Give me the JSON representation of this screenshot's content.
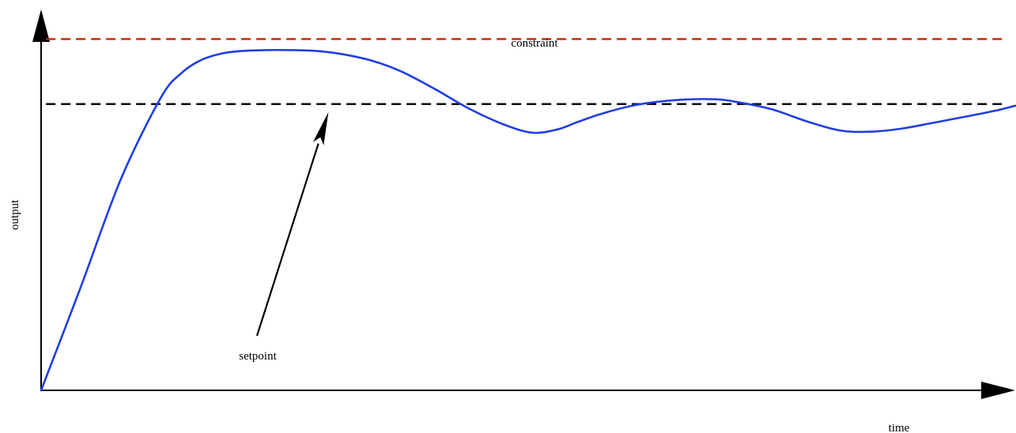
{
  "chart_data": {
    "type": "line",
    "title": "",
    "xlabel": "time",
    "ylabel": "output",
    "grid": false,
    "xlim": [
      0,
      100
    ],
    "ylim": [
      0,
      120
    ],
    "series": [
      {
        "name": "",
        "color": "#1f3fe0",
        "x": [
          0,
          4.1,
          8.2,
          12.3,
          14.4,
          16.4,
          18.5,
          20.5,
          23,
          25.6,
          28.3,
          31,
          34,
          37,
          40.5,
          44,
          47.7,
          50.5,
          53,
          55,
          57.5,
          61,
          65,
          69,
          71.5,
          75,
          78.6,
          82,
          85,
          88.2,
          91.5,
          95,
          98,
          100
        ],
        "y": [
          0,
          32,
          65,
          90,
          97.5,
          101.5,
          103.5,
          104.3,
          104.6,
          104.6,
          104.3,
          103.3,
          101.3,
          98,
          92.5,
          86.5,
          81.5,
          79.2,
          80.2,
          82.4,
          85,
          87.7,
          89.2,
          89.5,
          88.6,
          86.4,
          82.7,
          79.9,
          79.5,
          80.4,
          82.2,
          84.2,
          86,
          87.5
        ]
      }
    ],
    "reference_lines": [
      {
        "name": "constraint",
        "y": 108,
        "color": "#cc2200",
        "style": "dashed"
      },
      {
        "name": "setpoint",
        "y": 88,
        "color": "#000000",
        "style": "dashed"
      }
    ],
    "annotations": [
      {
        "text": "constraint"
      },
      {
        "text": "setpoint",
        "arrow_to_x": 29.5,
        "arrow_to_y": 88
      }
    ]
  }
}
